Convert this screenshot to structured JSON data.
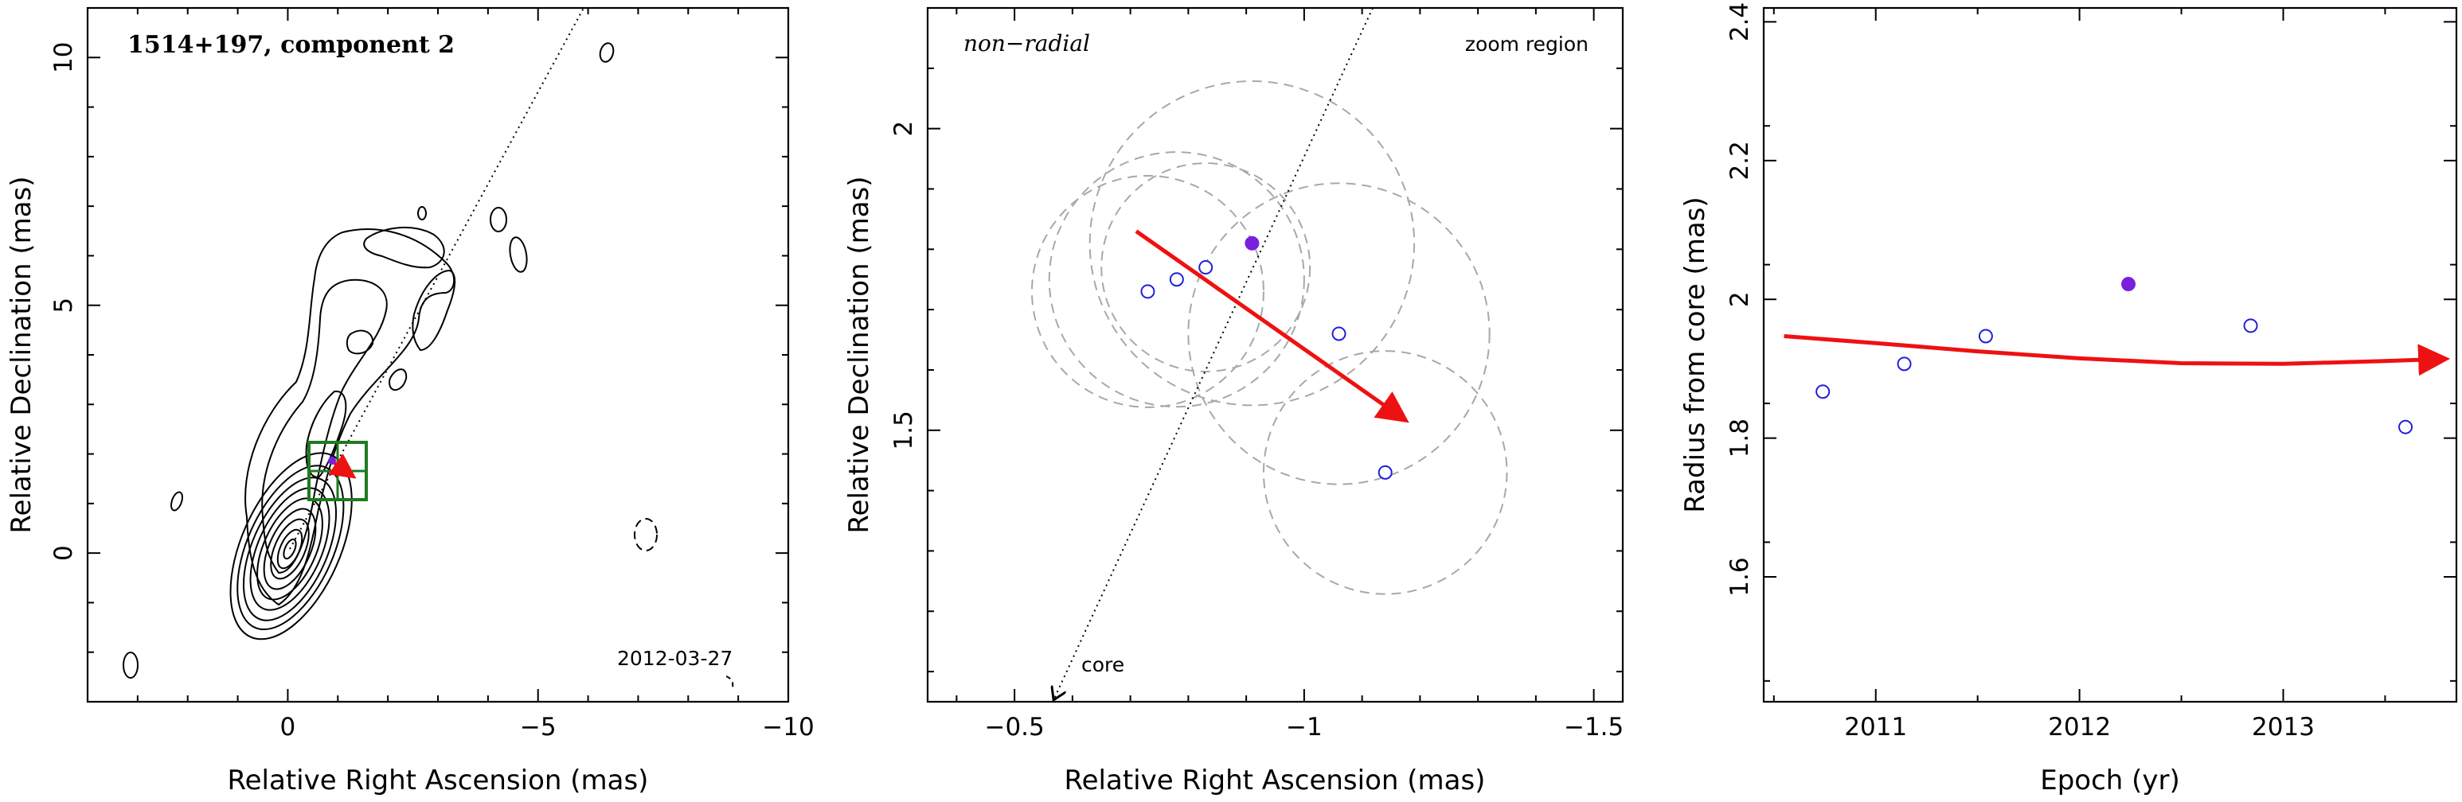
{
  "chart_data": [
    {
      "type": "contour",
      "title": "1514+197, component 2",
      "date": "2012-03-27",
      "xlabel": "Relative Right Ascension (mas)",
      "ylabel": "Relative Declination (mas)",
      "xlim": [
        4,
        -10
      ],
      "ylim": [
        -3,
        11
      ],
      "xticks": [
        0,
        -5,
        -10
      ],
      "yticks": [
        0,
        5,
        10
      ],
      "zoom_box": {
        "x": [
          -1.5,
          -0.3
        ],
        "y": [
          1.05,
          2.2
        ]
      },
      "component_position": [
        -0.8,
        1.75
      ],
      "jet_axis_angle_deg": 28,
      "colors": {
        "contour": "#000000",
        "box": "#1f7a1f",
        "arrow": "#ee1111",
        "marker": "#7a1fe0"
      }
    },
    {
      "type": "scatter",
      "annotation_left": "non−radial",
      "annotation_right": "zoom region",
      "core_label": "core",
      "xlabel": "Relative Right Ascension (mas)",
      "ylabel": "Relative Declination (mas)",
      "xlim": [
        -0.35,
        -1.55
      ],
      "ylim": [
        1.05,
        2.2
      ],
      "xticks": [
        -0.5,
        -1,
        -1.5
      ],
      "ytick_labels": [
        "1.5",
        "2"
      ],
      "yticks": [
        1.5,
        2
      ],
      "points": [
        {
          "x": -0.73,
          "y": 1.73,
          "filled": false
        },
        {
          "x": -0.78,
          "y": 1.75,
          "filled": false
        },
        {
          "x": -0.83,
          "y": 1.77,
          "filled": false
        },
        {
          "x": -0.91,
          "y": 1.81,
          "filled": true
        },
        {
          "x": -1.06,
          "y": 1.66,
          "filled": false
        },
        {
          "x": -1.14,
          "y": 1.43,
          "filled": false
        }
      ],
      "circles": [
        {
          "cx": -0.73,
          "cy": 1.73,
          "r": 0.2
        },
        {
          "cx": -0.78,
          "cy": 1.75,
          "r": 0.22
        },
        {
          "cx": -0.83,
          "cy": 1.77,
          "r": 0.18
        },
        {
          "cx": -0.91,
          "cy": 1.81,
          "r": 0.28
        },
        {
          "cx": -1.06,
          "cy": 1.66,
          "r": 0.26
        },
        {
          "cx": -1.14,
          "cy": 1.43,
          "r": 0.21
        }
      ],
      "vector": {
        "from": [
          -0.71,
          1.83
        ],
        "to": [
          -1.17,
          1.52
        ]
      },
      "colors": {
        "point": "#1f1fe0",
        "filled": "#7a1fe0",
        "arrow": "#ee1111",
        "circle": "#a8a8a8"
      }
    },
    {
      "type": "scatter",
      "xlabel": "Epoch (yr)",
      "ylabel": "Radius from core (mas)",
      "xlim": [
        2010.45,
        2013.85
      ],
      "ylim": [
        1.42,
        2.42
      ],
      "xticks": [
        2011,
        2012,
        2013
      ],
      "xtick_labels": [
        "2011",
        "2012",
        "2013"
      ],
      "yticks": [
        1.6,
        1.8,
        2,
        2.2,
        2.4
      ],
      "ytick_labels": [
        "1.6",
        "1.8",
        "2",
        "2.2",
        "2.4"
      ],
      "points": [
        {
          "x": 2010.74,
          "y": 1.867,
          "filled": false
        },
        {
          "x": 2011.14,
          "y": 1.907,
          "filled": false
        },
        {
          "x": 2011.54,
          "y": 1.947,
          "filled": false
        },
        {
          "x": 2012.24,
          "y": 2.022,
          "filled": true
        },
        {
          "x": 2012.84,
          "y": 1.962,
          "filled": false
        },
        {
          "x": 2013.6,
          "y": 1.816,
          "filled": false
        }
      ],
      "fit_curve": {
        "x": [
          2010.55,
          2011.0,
          2011.5,
          2012.0,
          2012.5,
          2013.0,
          2013.5,
          2013.78
        ],
        "y": [
          1.947,
          1.937,
          1.925,
          1.915,
          1.908,
          1.907,
          1.911,
          1.914
        ]
      },
      "colors": {
        "point": "#1f1fe0",
        "filled": "#7a1fe0",
        "arrow": "#ee1111"
      }
    }
  ]
}
